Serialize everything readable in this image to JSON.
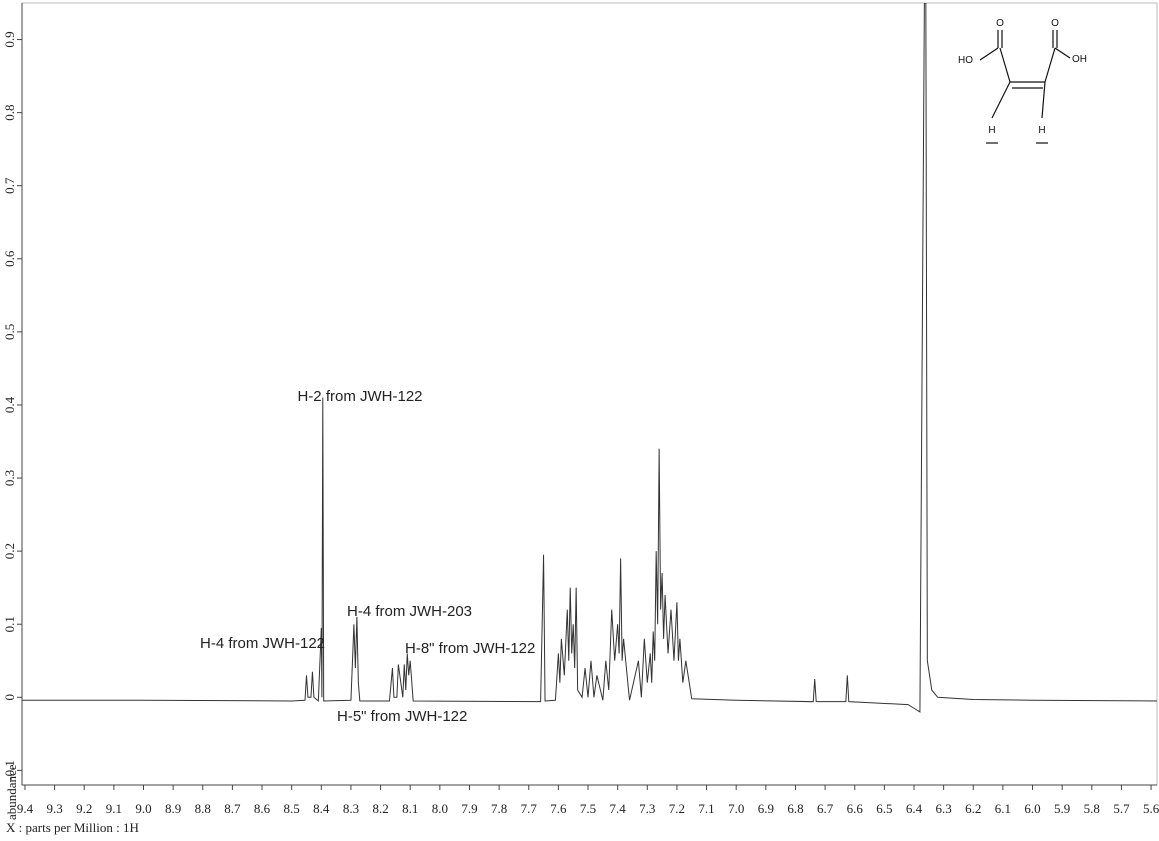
{
  "chart_data": {
    "type": "line",
    "color": "#333333",
    "x_label": "X : parts per Million : 1H",
    "y_label": "abundance",
    "xlim": [
      9.41,
      5.58
    ],
    "ylim": [
      -0.12,
      0.95
    ],
    "xticks": [
      9.4,
      9.3,
      9.2,
      9.1,
      {
        "value": 9,
        "label": "9.0"
      },
      8.9,
      8.8,
      8.7,
      8.6,
      8.5,
      8.4,
      8.3,
      8.2,
      8.1,
      {
        "value": 8,
        "label": "8.0"
      },
      7.9,
      7.8,
      7.7,
      7.6,
      7.5,
      7.4,
      7.3,
      7.2,
      7.1,
      {
        "value": 7,
        "label": "7.0"
      },
      6.9,
      6.8,
      6.7,
      6.6,
      6.5,
      6.4,
      6.3,
      6.2,
      6.1,
      {
        "value": 6,
        "label": "6.0"
      },
      5.9,
      5.8,
      5.7,
      5.6
    ],
    "yticks": [
      -0.1,
      0,
      0.1,
      0.2,
      0.3,
      0.4,
      0.5,
      0.6,
      0.7,
      0.8,
      0.9
    ],
    "x": [
      9.41,
      9.0,
      8.5,
      8.455,
      8.45,
      8.445,
      8.435,
      8.43,
      8.425,
      8.41,
      8.4,
      8.398,
      8.395,
      8.392,
      8.3,
      8.29,
      8.285,
      8.28,
      8.275,
      8.27,
      8.17,
      8.16,
      8.155,
      8.145,
      8.14,
      8.125,
      8.12,
      8.115,
      8.11,
      8.105,
      8.1,
      8.09,
      7.66,
      7.65,
      7.645,
      7.61,
      7.6,
      7.595,
      7.59,
      7.58,
      7.57,
      7.565,
      7.56,
      7.555,
      7.55,
      7.545,
      7.54,
      7.535,
      7.52,
      7.51,
      7.5,
      7.49,
      7.48,
      7.47,
      7.45,
      7.44,
      7.43,
      7.42,
      7.41,
      7.4,
      7.395,
      7.39,
      7.385,
      7.38,
      7.36,
      7.33,
      7.32,
      7.31,
      7.3,
      7.29,
      7.285,
      7.28,
      7.275,
      7.27,
      7.265,
      7.26,
      7.255,
      7.25,
      7.245,
      7.24,
      7.23,
      7.22,
      7.21,
      7.2,
      7.195,
      7.19,
      7.18,
      7.17,
      7.15,
      7.0,
      6.74,
      6.735,
      6.73,
      6.63,
      6.625,
      6.62,
      6.42,
      6.4,
      6.38,
      6.365,
      6.36,
      6.355,
      6.34,
      6.32,
      6.2,
      6.0,
      5.58
    ],
    "values": [
      -0.004,
      -0.004,
      -0.005,
      -0.004,
      0.03,
      0,
      0,
      0.035,
      0,
      -0.005,
      0.095,
      0,
      0.41,
      -0.005,
      -0.004,
      0.1,
      0.04,
      0.11,
      0.02,
      -0.005,
      -0.005,
      0.04,
      0,
      0,
      0.045,
      0,
      0.045,
      0.01,
      0.06,
      0.03,
      0.05,
      -0.005,
      -0.006,
      0.195,
      -0.005,
      -0.004,
      0.06,
      0.02,
      0.08,
      0.03,
      0.12,
      0.05,
      0.15,
      0.06,
      0.1,
      0.04,
      0.15,
      0.01,
      0,
      0.04,
      0,
      0.05,
      0,
      0.03,
      -0.004,
      0.05,
      0.01,
      0.12,
      0.05,
      0.1,
      0.06,
      0.19,
      0.05,
      0.08,
      -0.004,
      0.05,
      0,
      0.08,
      0.02,
      0.06,
      0.02,
      0.09,
      0.05,
      0.2,
      0.1,
      0.34,
      0.12,
      0.17,
      0.08,
      0.14,
      0.06,
      0.12,
      0.05,
      0.13,
      0.05,
      0.08,
      0.02,
      0.05,
      -0.002,
      -0.004,
      -0.006,
      0.025,
      -0.006,
      -0.006,
      0.03,
      -0.006,
      -0.01,
      -0.015,
      -0.02,
      0.95,
      0.95,
      0.05,
      0.01,
      0,
      -0.003,
      -0.004,
      -0.005
    ],
    "annotations": [
      "H-2 from JWH-122",
      "H-4 from JWH-203",
      "H-4 from JWH-122",
      "H-8\" from JWH-122",
      "H-5\" from JWH-122"
    ],
    "structure_labels": [
      "O",
      "O",
      "HO",
      "OH",
      "H",
      "H"
    ]
  }
}
